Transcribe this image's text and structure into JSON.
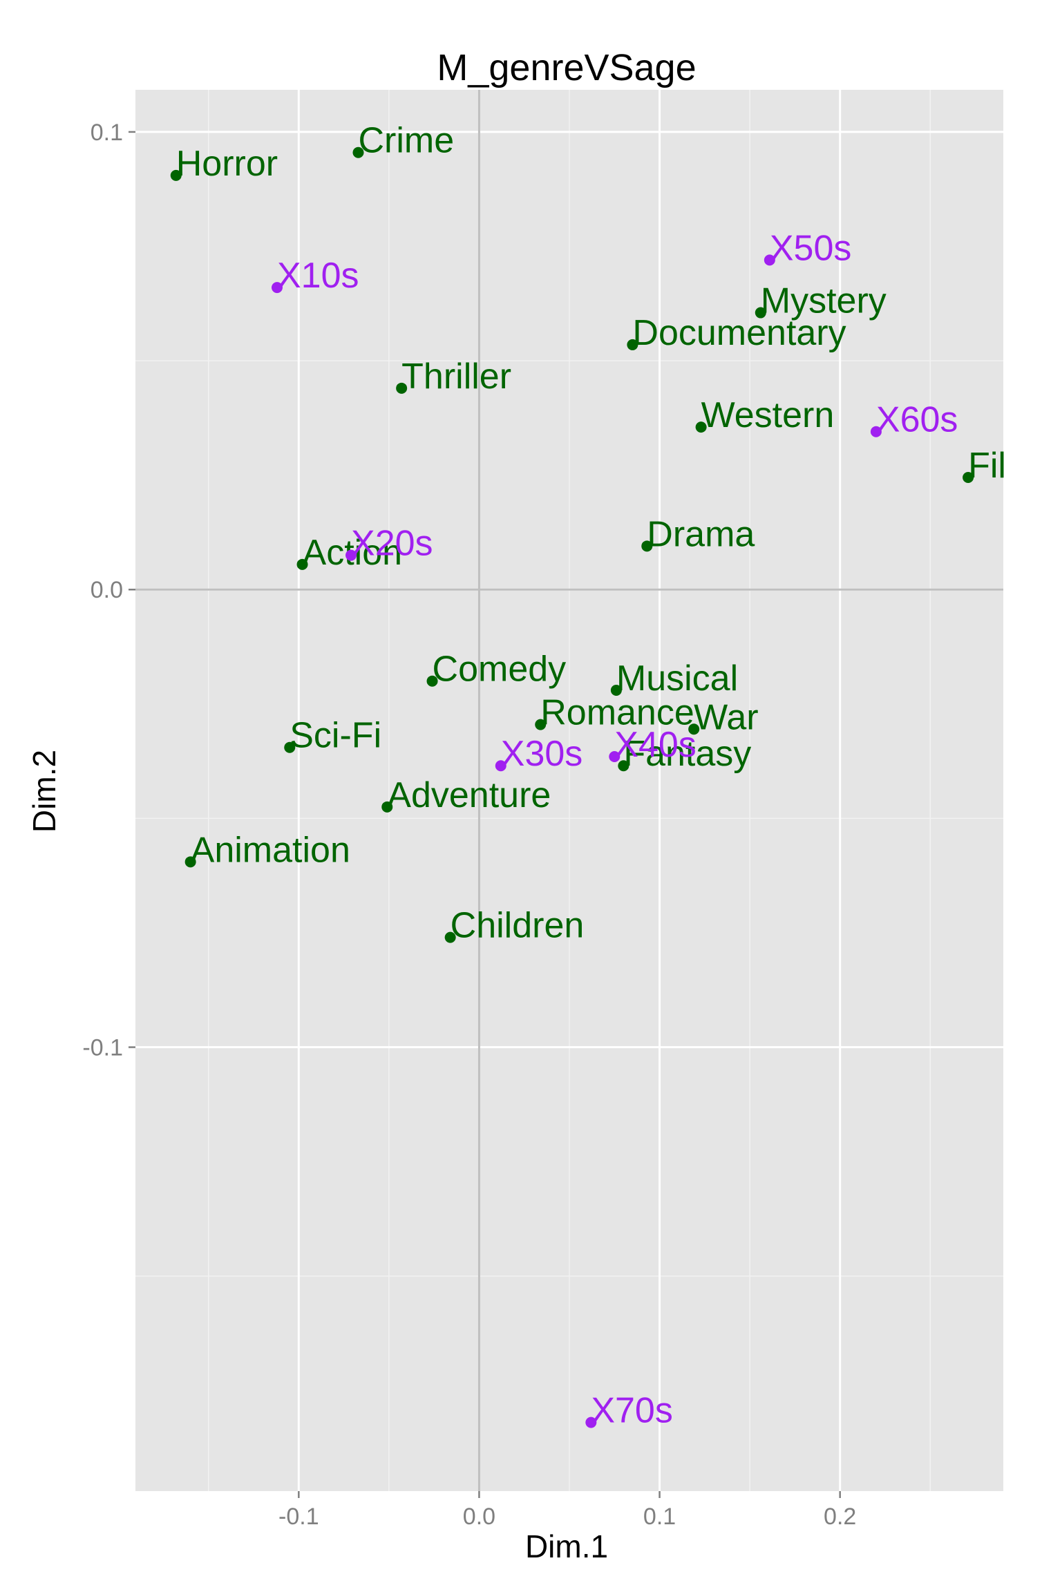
{
  "chart_data": {
    "type": "scatter",
    "title": "M_genreVSage",
    "xlabel": "Dim.1",
    "ylabel": "Dim.2",
    "xlim": [
      -0.1905,
      0.2905
    ],
    "ylim": [
      -0.197,
      0.1092
    ],
    "x_major_ticks": [
      -0.1,
      0.0,
      0.1,
      0.2
    ],
    "x_tick_labels": [
      "-0.1",
      "0.0",
      "0.1",
      "0.2"
    ],
    "y_major_ticks": [
      -0.1,
      0.0,
      0.1
    ],
    "y_tick_labels": [
      "-0.1",
      "0.0",
      "0.1"
    ],
    "x_minor_ticks": [
      -0.15,
      -0.05,
      0.05,
      0.15,
      0.25
    ],
    "y_minor_ticks": [
      -0.15,
      -0.05,
      0.05
    ],
    "grid": true,
    "reference_lines": {
      "x": 0.0,
      "y": 0.0
    },
    "colors": {
      "panel_background": "#e5e5e5",
      "grid": "#ffffff",
      "reference_line": "#bfbfbf",
      "genre": "#006400",
      "age": "#a020f0"
    },
    "series": [
      {
        "name": "genre",
        "color": "#006400",
        "points": [
          {
            "label": "Horror",
            "x": -0.168,
            "y": 0.0905
          },
          {
            "label": "Crime",
            "x": -0.067,
            "y": 0.0955
          },
          {
            "label": "Mystery",
            "x": 0.156,
            "y": 0.0605
          },
          {
            "label": "Documentary",
            "x": 0.085,
            "y": 0.0535
          },
          {
            "label": "Thriller",
            "x": -0.043,
            "y": 0.044
          },
          {
            "label": "Western",
            "x": 0.123,
            "y": 0.0355
          },
          {
            "label": "Fil",
            "x": 0.271,
            "y": 0.0245
          },
          {
            "label": "Drama",
            "x": 0.093,
            "y": 0.0095
          },
          {
            "label": "Action",
            "x": -0.098,
            "y": 0.0055
          },
          {
            "label": "Comedy",
            "x": -0.026,
            "y": -0.02
          },
          {
            "label": "Musical",
            "x": 0.076,
            "y": -0.022
          },
          {
            "label": "Romance",
            "x": 0.034,
            "y": -0.0295
          },
          {
            "label": "War",
            "x": 0.119,
            "y": -0.0305
          },
          {
            "label": "Sci-Fi",
            "x": -0.105,
            "y": -0.0345
          },
          {
            "label": "Fantasy",
            "x": 0.08,
            "y": -0.0385
          },
          {
            "label": "Adventure",
            "x": -0.051,
            "y": -0.0475
          },
          {
            "label": "Animation",
            "x": -0.16,
            "y": -0.0595
          },
          {
            "label": "Children",
            "x": -0.016,
            "y": -0.076
          }
        ]
      },
      {
        "name": "age",
        "color": "#a020f0",
        "points": [
          {
            "label": "X50s",
            "x": 0.161,
            "y": 0.072
          },
          {
            "label": "X10s",
            "x": -0.112,
            "y": 0.066
          },
          {
            "label": "X60s",
            "x": 0.22,
            "y": 0.0345
          },
          {
            "label": "X20s",
            "x": -0.071,
            "y": 0.0075
          },
          {
            "label": "X40s",
            "x": 0.075,
            "y": -0.0365
          },
          {
            "label": "X30s",
            "x": 0.012,
            "y": -0.0385
          },
          {
            "label": "X70s",
            "x": 0.062,
            "y": -0.182
          }
        ]
      }
    ]
  }
}
